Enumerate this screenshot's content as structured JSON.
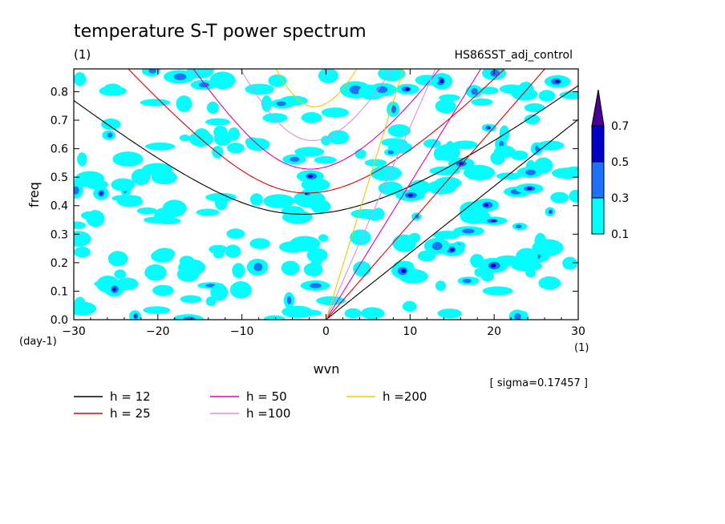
{
  "chart_data": {
    "type": "contour",
    "title": "temperature S-T power spectrum",
    "subtitle_left": "(1)",
    "subtitle_right": "HS86SST_adj_control",
    "xlabel": "wvn",
    "ylabel": "freq",
    "x_unit": "(1)",
    "y_unit": "(day-1)",
    "xlim": [
      -30,
      30
    ],
    "ylim": [
      0,
      0.88
    ],
    "xticks": [
      -30,
      -20,
      -10,
      0,
      10,
      20,
      30
    ],
    "yticks": [
      0.0,
      0.1,
      0.2,
      0.3,
      0.4,
      0.5,
      0.6,
      0.7,
      0.8
    ],
    "sigma_text": "[ sigma=0.17457 ]",
    "colorbar": {
      "levels": [
        "0.1",
        "0.3",
        "0.5",
        "0.7"
      ],
      "colors": [
        "#00ffff",
        "#1e70ff",
        "#0000c8",
        "#4b0096"
      ]
    },
    "dispersion_series": [
      {
        "name": "h = 12",
        "color": "#000000",
        "h": 12
      },
      {
        "name": "h = 25",
        "color": "#e00000",
        "h": 25
      },
      {
        "name": "h = 50",
        "color": "#e000b0",
        "h": 50
      },
      {
        "name": "h =100",
        "color": "#d890e0",
        "h": 100
      },
      {
        "name": "h =200",
        "color": "#f0c800",
        "h": 200
      }
    ]
  }
}
